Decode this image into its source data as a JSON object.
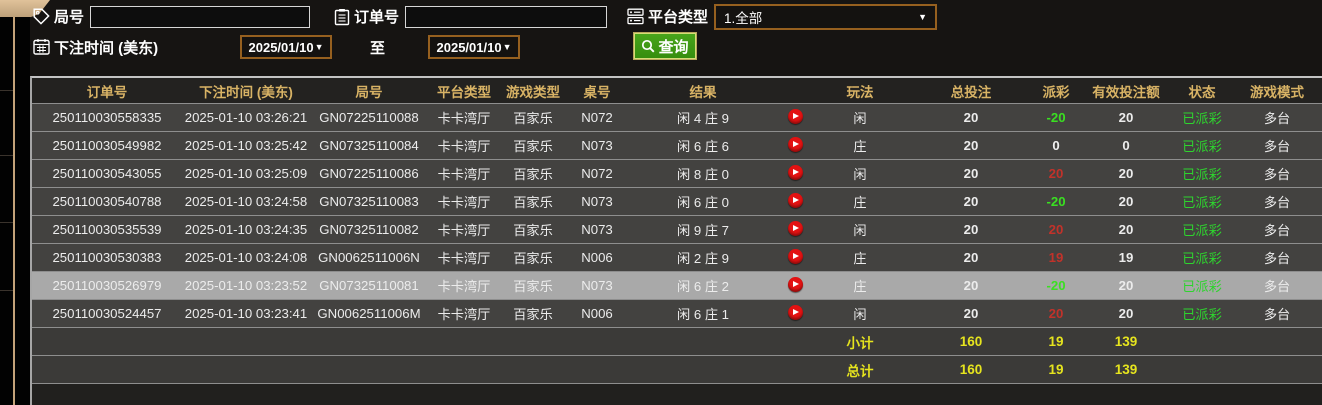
{
  "filter_bar": {
    "game_no": {
      "label": "局号",
      "value": ""
    },
    "order_no": {
      "label": "订单号",
      "value": ""
    },
    "platform": {
      "label": "平台类型",
      "value": "1.全部",
      "caret": "▼"
    },
    "bet_time": {
      "label": "下注时间 (美东)",
      "from": "2025/01/10",
      "to_label": "至",
      "to": "2025/01/10",
      "caret": "▼"
    },
    "search": {
      "label": "查询"
    }
  },
  "table": {
    "headers": [
      "订单号",
      "下注时间 (美东)",
      "局号",
      "平台类型",
      "游戏类型",
      "桌号",
      "结果",
      "",
      "玩法",
      "总投注",
      "派彩",
      "有效投注额",
      "状态",
      "游戏模式"
    ],
    "rows": [
      {
        "order_no": "250110030558335",
        "bet_time": "2025-01-10 03:26:21",
        "game_no": "GN07225110088",
        "platform": "卡卡湾厅",
        "game_type": "百家乐",
        "table_no": "N072",
        "result": "闲 4 庄 9",
        "bet_side": "闲",
        "total_bet": "20",
        "payout": "-20",
        "payout_tone": "neg",
        "valid_bet": "20",
        "status": "已派彩",
        "mode": "多台",
        "selected": false
      },
      {
        "order_no": "250110030549982",
        "bet_time": "2025-01-10 03:25:42",
        "game_no": "GN07325110084",
        "platform": "卡卡湾厅",
        "game_type": "百家乐",
        "table_no": "N073",
        "result": "闲 6 庄 6",
        "bet_side": "庄",
        "total_bet": "20",
        "payout": "0",
        "payout_tone": "zero",
        "valid_bet": "0",
        "status": "已派彩",
        "mode": "多台",
        "selected": false
      },
      {
        "order_no": "250110030543055",
        "bet_time": "2025-01-10 03:25:09",
        "game_no": "GN07225110086",
        "platform": "卡卡湾厅",
        "game_type": "百家乐",
        "table_no": "N072",
        "result": "闲 8 庄 0",
        "bet_side": "闲",
        "total_bet": "20",
        "payout": "20",
        "payout_tone": "pos",
        "valid_bet": "20",
        "status": "已派彩",
        "mode": "多台",
        "selected": false
      },
      {
        "order_no": "250110030540788",
        "bet_time": "2025-01-10 03:24:58",
        "game_no": "GN07325110083",
        "platform": "卡卡湾厅",
        "game_type": "百家乐",
        "table_no": "N073",
        "result": "闲 6 庄 0",
        "bet_side": "庄",
        "total_bet": "20",
        "payout": "-20",
        "payout_tone": "neg",
        "valid_bet": "20",
        "status": "已派彩",
        "mode": "多台",
        "selected": false
      },
      {
        "order_no": "250110030535539",
        "bet_time": "2025-01-10 03:24:35",
        "game_no": "GN07325110082",
        "platform": "卡卡湾厅",
        "game_type": "百家乐",
        "table_no": "N073",
        "result": "闲 9 庄 7",
        "bet_side": "闲",
        "total_bet": "20",
        "payout": "20",
        "payout_tone": "pos",
        "valid_bet": "20",
        "status": "已派彩",
        "mode": "多台",
        "selected": false
      },
      {
        "order_no": "250110030530383",
        "bet_time": "2025-01-10 03:24:08",
        "game_no": "GN0062511006N",
        "platform": "卡卡湾厅",
        "game_type": "百家乐",
        "table_no": "N006",
        "result": "闲 2 庄 9",
        "bet_side": "庄",
        "total_bet": "20",
        "payout": "19",
        "payout_tone": "pos",
        "valid_bet": "19",
        "status": "已派彩",
        "mode": "多台",
        "selected": false
      },
      {
        "order_no": "250110030526979",
        "bet_time": "2025-01-10 03:23:52",
        "game_no": "GN07325110081",
        "platform": "卡卡湾厅",
        "game_type": "百家乐",
        "table_no": "N073",
        "result": "闲 6 庄 2",
        "bet_side": "庄",
        "total_bet": "20",
        "payout": "-20",
        "payout_tone": "neg",
        "valid_bet": "20",
        "status": "已派彩",
        "mode": "多台",
        "selected": true
      },
      {
        "order_no": "250110030524457",
        "bet_time": "2025-01-10 03:23:41",
        "game_no": "GN0062511006M",
        "platform": "卡卡湾厅",
        "game_type": "百家乐",
        "table_no": "N006",
        "result": "闲 6 庄 1",
        "bet_side": "闲",
        "total_bet": "20",
        "payout": "20",
        "payout_tone": "pos",
        "valid_bet": "20",
        "status": "已派彩",
        "mode": "多台",
        "selected": false
      }
    ],
    "subtotal": {
      "label": "小计",
      "total_bet": "160",
      "payout": "19",
      "valid_bet": "139"
    },
    "grand_total": {
      "label": "总计",
      "total_bet": "160",
      "payout": "19",
      "valid_bet": "139"
    }
  },
  "colors": {
    "header_text": "#d8b365",
    "payout_positive": "#c2322a",
    "payout_negative": "#3ae021",
    "payout_zero": "#f0f0f0",
    "status_paid": "#2ed42e",
    "totals_yellow": "#e6e41e",
    "play_red": "#e31212",
    "selected_row": "#a9a9a9",
    "accent_border": "#96601f",
    "search_green": "#3f9c13"
  }
}
